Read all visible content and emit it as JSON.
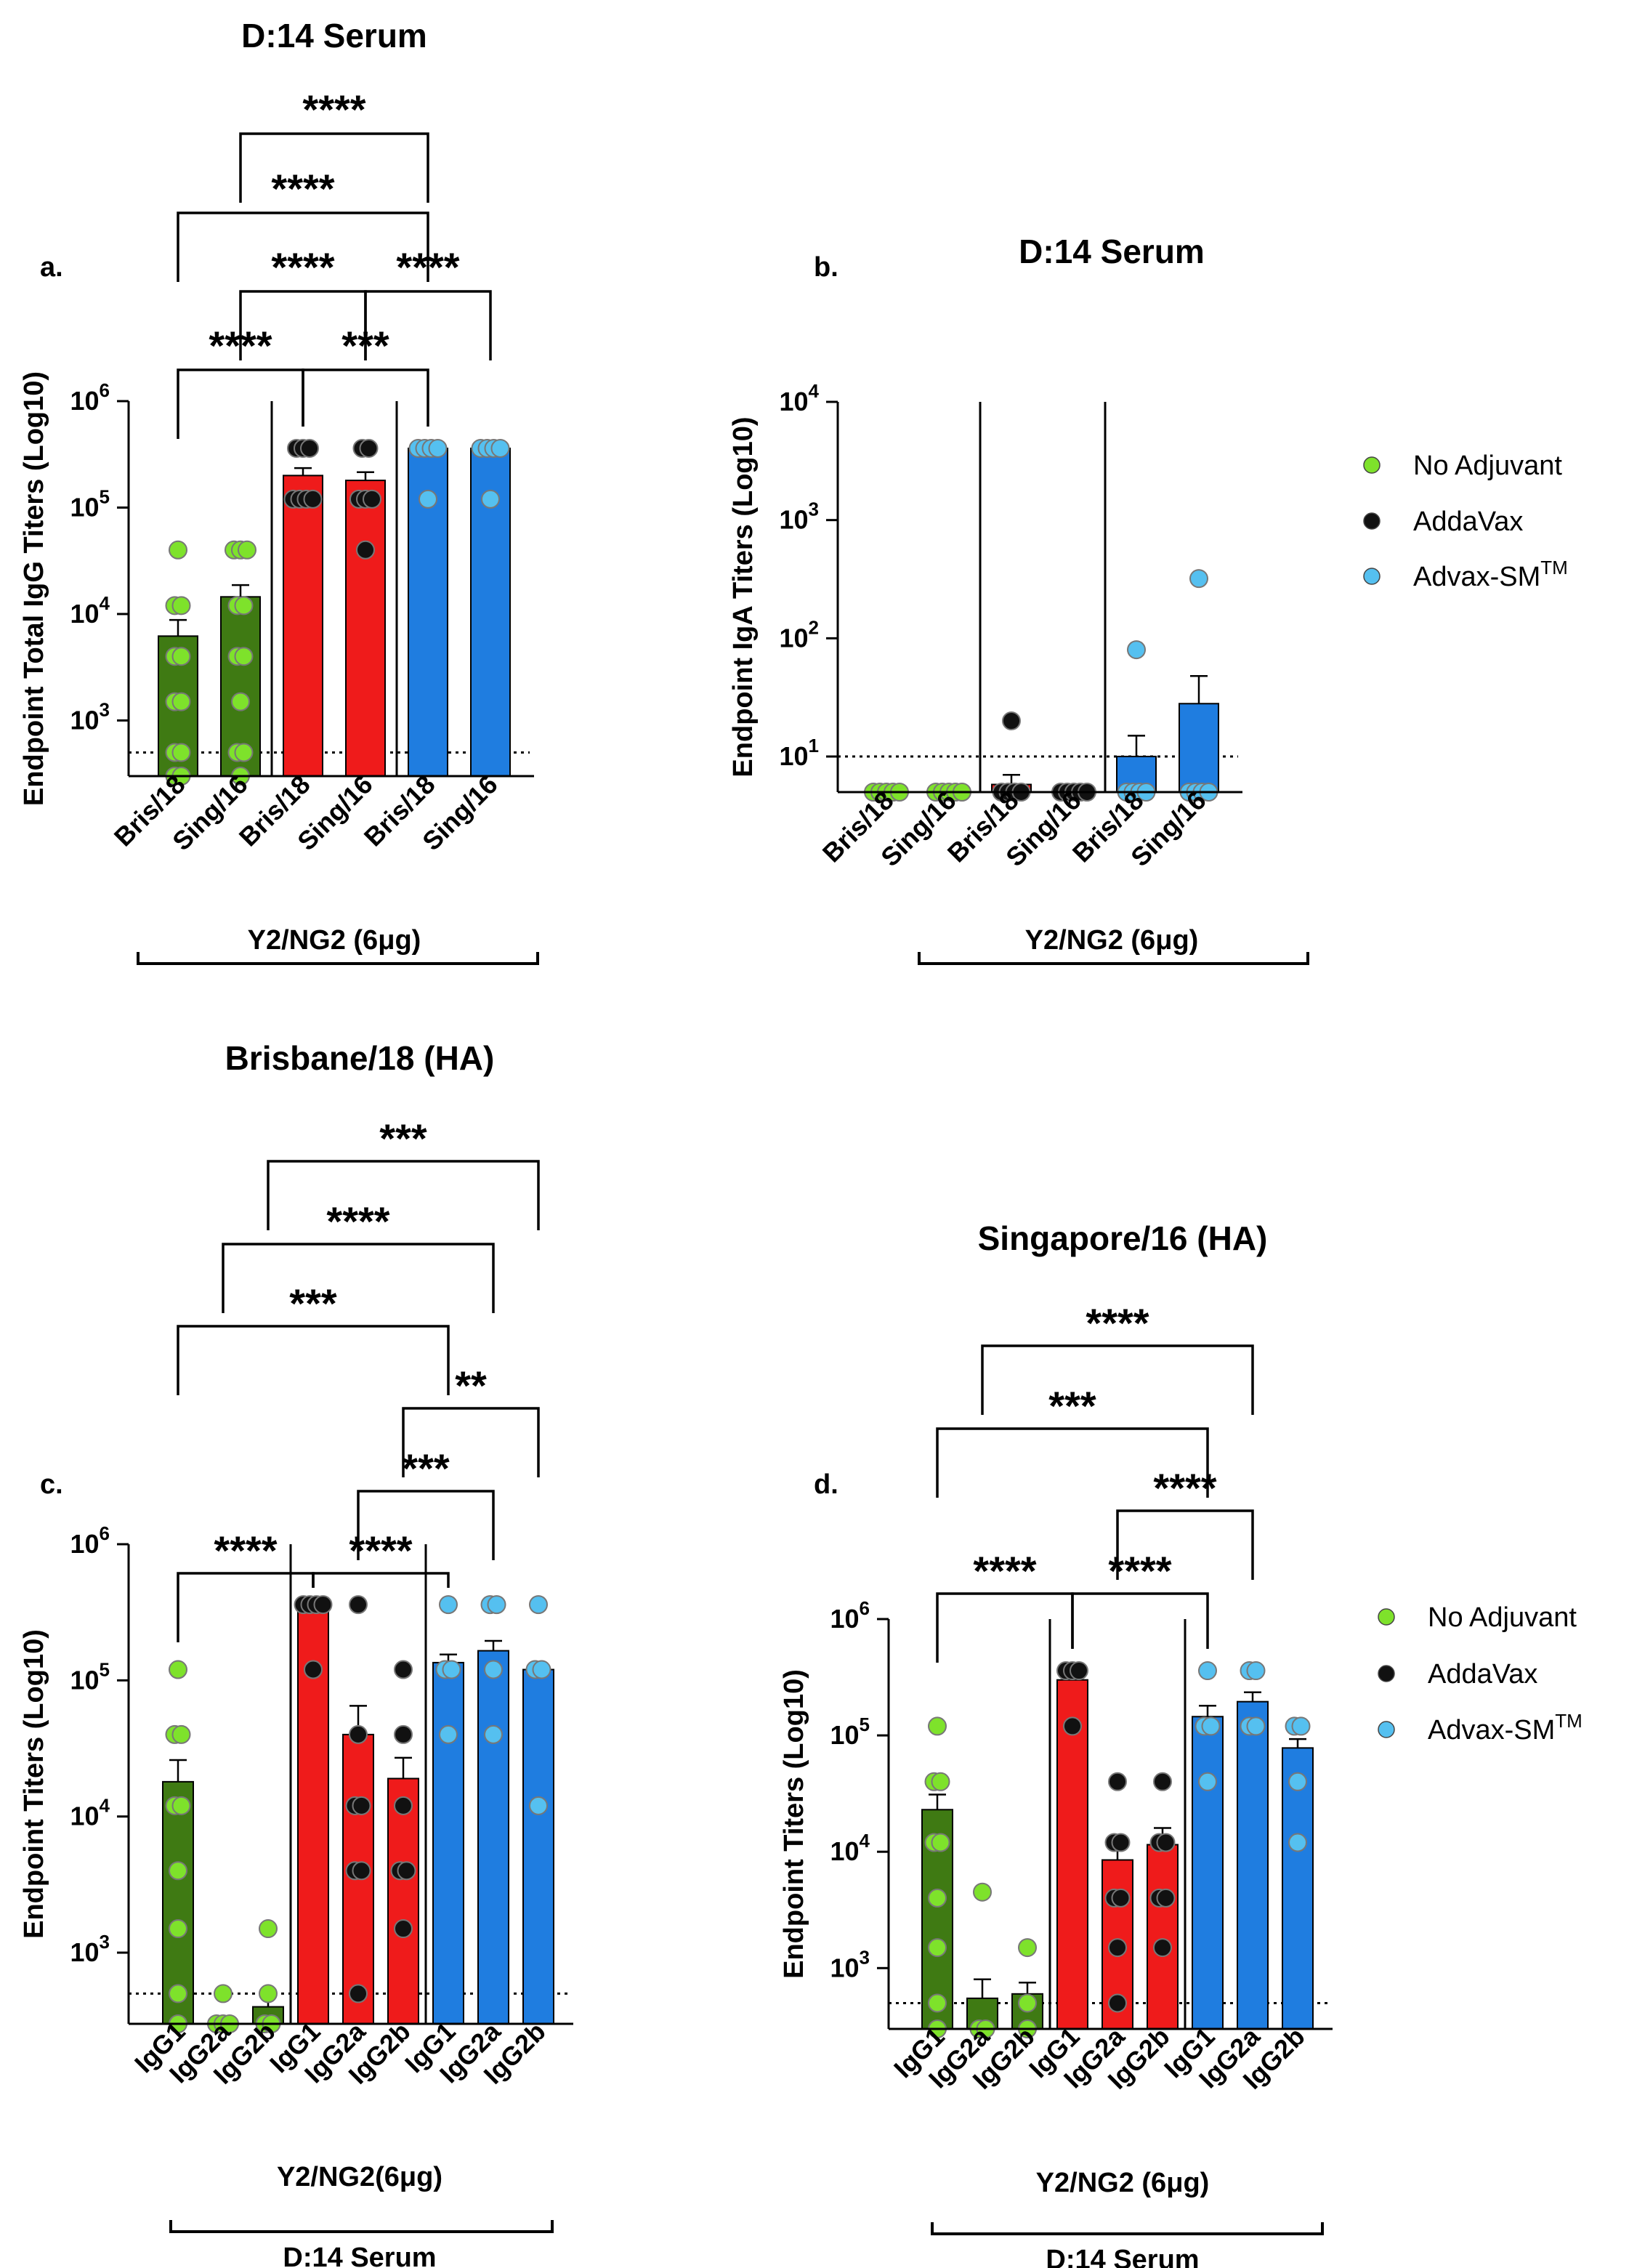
{
  "legend": {
    "entries": [
      {
        "name": "No Adjuvant",
        "color": "#7ee22b"
      },
      {
        "name": "AddaVax",
        "color": "#000000"
      },
      {
        "name": "Advax-SM",
        "superscript": "TM",
        "color": "#55c0f0"
      }
    ]
  },
  "colors": {
    "no_adjuvant_bar": "#3f7a13",
    "addavax_bar": "#ef1b1b",
    "advax_bar": "#1f7de0",
    "no_adjuvant_dot": "#7ee22b",
    "addavax_dot": "#111111",
    "advax_dot": "#55c0f0"
  },
  "chart_data": [
    {
      "panel": "a.",
      "type": "bar",
      "title": "D:14 Serum",
      "ylabel": "Endpoint  Total IgG Titers (Log10)",
      "yscale": "log",
      "ylim": [
        300,
        1000000
      ],
      "yticks": [
        {
          "base": "10",
          "exp": "3",
          "value": 1000
        },
        {
          "base": "10",
          "exp": "4",
          "value": 10000
        },
        {
          "base": "10",
          "exp": "5",
          "value": 100000
        },
        {
          "base": "10",
          "exp": "6",
          "value": 1000000
        }
      ],
      "limit_of_detection": 500,
      "categories": [
        "Bris/18",
        "Sing/16",
        "Bris/18",
        "Sing/16",
        "Bris/18",
        "Sing/16"
      ],
      "group_label": "Y2/NG2 (6μg)",
      "bars": [
        {
          "group": "No Adjuvant",
          "value": 6200,
          "error": 2600,
          "points": [
            40000,
            12000,
            12000,
            4000,
            4000,
            1500,
            1500,
            500,
            500,
            300,
            300
          ]
        },
        {
          "group": "No Adjuvant",
          "value": 14500,
          "error": 4200,
          "points": [
            40000,
            40000,
            40000,
            12000,
            12000,
            4000,
            4000,
            1500,
            500,
            500,
            300
          ]
        },
        {
          "group": "AddaVax",
          "value": 200000,
          "error": 35000,
          "points": [
            360000,
            360000,
            360000,
            120000,
            120000,
            120000,
            120000
          ]
        },
        {
          "group": "AddaVax",
          "value": 180000,
          "error": 35000,
          "points": [
            360000,
            360000,
            120000,
            120000,
            120000,
            40000
          ]
        },
        {
          "group": "Advax-SM",
          "value": 360000,
          "error": 0,
          "points": [
            360000,
            360000,
            360000,
            360000,
            120000
          ]
        },
        {
          "group": "Advax-SM",
          "value": 360000,
          "error": 0,
          "points": [
            360000,
            360000,
            360000,
            360000,
            120000
          ]
        }
      ],
      "brackets": [
        {
          "from": 1,
          "to": 4,
          "label": "****"
        },
        {
          "from": 0,
          "to": 4,
          "label": "****"
        },
        {
          "from": 1,
          "to": 3,
          "label": "****"
        },
        {
          "from": 3,
          "to": 5,
          "label": "****"
        },
        {
          "from": 0,
          "to": 2,
          "label": "****"
        },
        {
          "from": 2,
          "to": 4,
          "label": "***"
        }
      ]
    },
    {
      "panel": "b.",
      "type": "bar",
      "title": "D:14 Serum",
      "ylabel": "Endpoint IgA Titers (Log10)",
      "yscale": "log",
      "ylim": [
        5,
        10000
      ],
      "yticks": [
        {
          "base": "10",
          "exp": "1",
          "value": 10
        },
        {
          "base": "10",
          "exp": "2",
          "value": 100
        },
        {
          "base": "10",
          "exp": "3",
          "value": 1000
        },
        {
          "base": "10",
          "exp": "4",
          "value": 10000
        }
      ],
      "limit_of_detection": 10,
      "categories": [
        "Bris/18",
        "Sing/16",
        "Bris/18",
        "Sing/16",
        "Bris/18",
        "Sing/16"
      ],
      "group_label": "Y2/NG2 (6μg)",
      "bars": [
        {
          "group": "No Adjuvant",
          "value": 5,
          "error": 0,
          "points": [
            5,
            5,
            5,
            5,
            5
          ]
        },
        {
          "group": "No Adjuvant",
          "value": 5,
          "error": 0,
          "points": [
            5,
            5,
            5,
            5,
            5
          ]
        },
        {
          "group": "AddaVax",
          "value": 5.8,
          "error": 1.2,
          "points": [
            20,
            5,
            5,
            5,
            5
          ]
        },
        {
          "group": "AddaVax",
          "value": 5,
          "error": 0,
          "points": [
            5,
            5,
            5,
            5,
            5
          ]
        },
        {
          "group": "Advax-SM",
          "value": 10,
          "error": 5,
          "points": [
            80,
            5,
            5,
            5,
            5
          ]
        },
        {
          "group": "Advax-SM",
          "value": 28,
          "error": 20,
          "points": [
            320,
            5,
            5,
            5,
            5
          ]
        }
      ],
      "brackets": []
    },
    {
      "panel": "c.",
      "type": "bar",
      "title": "Brisbane/18 (HA)",
      "ylabel": "Endpoint Titers (Log10)",
      "yscale": "log",
      "ylim": [
        300,
        1000000
      ],
      "yticks": [
        {
          "base": "10",
          "exp": "3",
          "value": 1000
        },
        {
          "base": "10",
          "exp": "4",
          "value": 10000
        },
        {
          "base": "10",
          "exp": "5",
          "value": 100000
        },
        {
          "base": "10",
          "exp": "6",
          "value": 1000000
        }
      ],
      "limit_of_detection": 500,
      "categories": [
        "IgG1",
        "IgG2a",
        "IgG2b",
        "IgG1",
        "IgG2a",
        "IgG2b",
        "IgG1",
        "IgG2a",
        "IgG2b"
      ],
      "group_label": "Y2/NG2(6μg)",
      "group_label2": "D:14 Serum",
      "bars": [
        {
          "group": "No Adjuvant",
          "value": 18000,
          "error": 8000,
          "points": [
            120000,
            40000,
            40000,
            12000,
            12000,
            4000,
            1500,
            500,
            300
          ]
        },
        {
          "group": "No Adjuvant",
          "value": 300,
          "error": 0,
          "points": [
            500,
            300,
            300,
            300
          ]
        },
        {
          "group": "No Adjuvant",
          "value": 400,
          "error": 120,
          "points": [
            1500,
            500,
            300,
            300
          ]
        },
        {
          "group": "AddaVax",
          "value": 360000,
          "error": 0,
          "points": [
            360000,
            360000,
            360000,
            360000,
            120000
          ]
        },
        {
          "group": "AddaVax",
          "value": 40000,
          "error": 25000,
          "points": [
            360000,
            40000,
            12000,
            12000,
            4000,
            4000,
            500
          ]
        },
        {
          "group": "AddaVax",
          "value": 19000,
          "error": 8000,
          "points": [
            120000,
            40000,
            12000,
            4000,
            4000,
            1500
          ]
        },
        {
          "group": "Advax-SM",
          "value": 135000,
          "error": 20000,
          "points": [
            360000,
            120000,
            120000,
            40000
          ]
        },
        {
          "group": "Advax-SM",
          "value": 165000,
          "error": 30000,
          "points": [
            360000,
            360000,
            120000,
            40000
          ]
        },
        {
          "group": "Advax-SM",
          "value": 120000,
          "error": 0,
          "points": [
            360000,
            120000,
            120000,
            12000
          ]
        }
      ],
      "brackets": [
        {
          "from": 2,
          "to": 8,
          "label": "***"
        },
        {
          "from": 1,
          "to": 7,
          "label": "****"
        },
        {
          "from": 0,
          "to": 6,
          "label": "***"
        },
        {
          "from": 5,
          "to": 8,
          "label": "**"
        },
        {
          "from": 4,
          "to": 7,
          "label": "***"
        },
        {
          "from": 0,
          "to": 3,
          "label": "****"
        },
        {
          "from": 3,
          "to": 6,
          "label": "****"
        }
      ]
    },
    {
      "panel": "d.",
      "type": "bar",
      "title": "Singapore/16 (HA)",
      "ylabel": "Endpoint Titers (Log10)",
      "yscale": "log",
      "ylim": [
        300,
        1000000
      ],
      "yticks": [
        {
          "base": "10",
          "exp": "3",
          "value": 1000
        },
        {
          "base": "10",
          "exp": "4",
          "value": 10000
        },
        {
          "base": "10",
          "exp": "5",
          "value": 100000
        },
        {
          "base": "10",
          "exp": "6",
          "value": 1000000
        }
      ],
      "limit_of_detection": 500,
      "categories": [
        "IgG1",
        "IgG2a",
        "IgG2b",
        "IgG1",
        "IgG2a",
        "IgG2b",
        "IgG1",
        "IgG2a",
        "IgG2b"
      ],
      "group_label": "Y2/NG2 (6μg)",
      "group_label2": "D:14 Serum",
      "bars": [
        {
          "group": "No Adjuvant",
          "value": 23000,
          "error": 8000,
          "points": [
            120000,
            40000,
            40000,
            12000,
            12000,
            4000,
            1500,
            500,
            300
          ]
        },
        {
          "group": "No Adjuvant",
          "value": 550,
          "error": 250,
          "points": [
            4500,
            300,
            300
          ]
        },
        {
          "group": "No Adjuvant",
          "value": 600,
          "error": 150,
          "points": [
            1500,
            500,
            300
          ]
        },
        {
          "group": "AddaVax",
          "value": 300000,
          "error": 40000,
          "points": [
            360000,
            360000,
            360000,
            120000
          ]
        },
        {
          "group": "AddaVax",
          "value": 8500,
          "error": 3500,
          "points": [
            40000,
            12000,
            12000,
            4000,
            4000,
            1500,
            500
          ]
        },
        {
          "group": "AddaVax",
          "value": 11500,
          "error": 4500,
          "points": [
            40000,
            12000,
            12000,
            4000,
            4000,
            1500
          ]
        },
        {
          "group": "Advax-SM",
          "value": 145000,
          "error": 35000,
          "points": [
            360000,
            120000,
            120000,
            40000
          ]
        },
        {
          "group": "Advax-SM",
          "value": 195000,
          "error": 40000,
          "points": [
            360000,
            360000,
            120000,
            120000
          ]
        },
        {
          "group": "Advax-SM",
          "value": 78000,
          "error": 15000,
          "points": [
            120000,
            120000,
            40000,
            12000
          ]
        }
      ],
      "brackets": [
        {
          "from": 1,
          "to": 7,
          "label": "****"
        },
        {
          "from": 0,
          "to": 6,
          "label": "***"
        },
        {
          "from": 4,
          "to": 7,
          "label": "****"
        },
        {
          "from": 0,
          "to": 3,
          "label": "****"
        },
        {
          "from": 3,
          "to": 6,
          "label": "****"
        }
      ]
    }
  ]
}
